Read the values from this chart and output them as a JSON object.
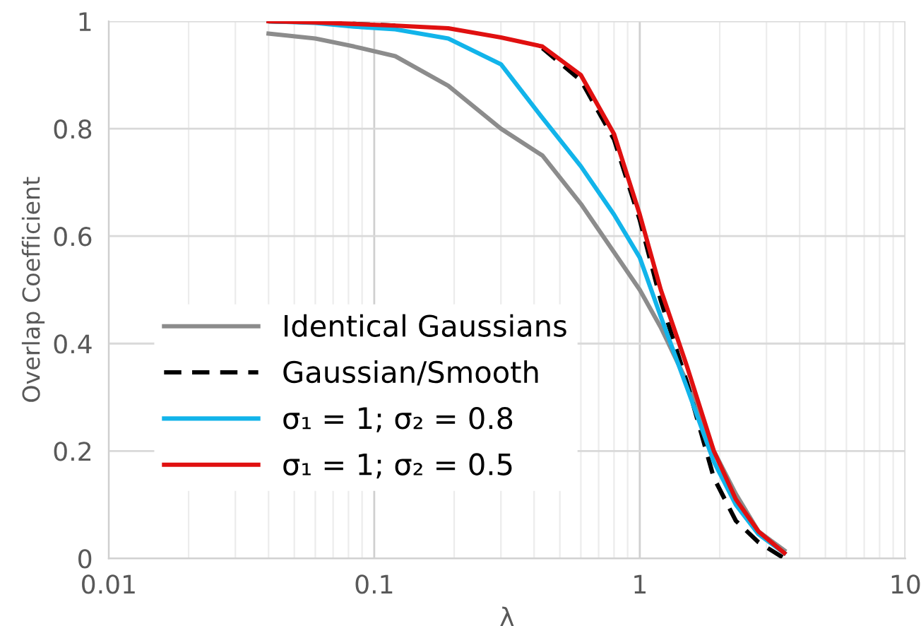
{
  "chart_data": {
    "type": "line",
    "xlabel": "λ",
    "ylabel": "Overlap Coefficient",
    "log": "x",
    "x": [
      0.04,
      0.06,
      0.084,
      0.12,
      0.19,
      0.3,
      0.43,
      0.6,
      0.8,
      1.0,
      1.2,
      1.5,
      1.9,
      2.3,
      2.8,
      3.5
    ],
    "series": [
      {
        "name": "Identical Gaussians",
        "color": "#8c8c8c",
        "line_style": "solid",
        "values": [
          0.977,
          0.968,
          0.953,
          0.935,
          0.88,
          0.8,
          0.75,
          0.66,
          0.57,
          0.5,
          0.43,
          0.33,
          0.2,
          0.12,
          0.05,
          0.015
        ]
      },
      {
        "name": "Gaussian/Smooth",
        "color": "#000000",
        "line_style": "dashed",
        "values": [
          1.0,
          0.998,
          0.995,
          0.992,
          null,
          null,
          0.95,
          0.89,
          0.78,
          0.63,
          0.48,
          0.33,
          0.15,
          0.07,
          0.03,
          0.0
        ]
      },
      {
        "name": "σ₁ = 1; σ₂ = 0.8",
        "color": "#12b4ea",
        "line_style": "solid",
        "values": [
          1.0,
          0.997,
          0.99,
          0.985,
          0.968,
          0.92,
          0.82,
          0.73,
          0.64,
          0.56,
          0.45,
          0.32,
          0.18,
          0.1,
          0.045,
          0.01
        ]
      },
      {
        "name": "σ₁ = 1; σ₂ = 0.5",
        "color": "#e01010",
        "line_style": "solid",
        "values": [
          1.0,
          0.998,
          0.995,
          0.992,
          0.987,
          0.97,
          0.953,
          0.9,
          0.79,
          0.64,
          0.5,
          0.36,
          0.2,
          0.11,
          0.05,
          0.01
        ]
      }
    ],
    "xlim": [
      0.01,
      10
    ],
    "xticks": [
      0.01,
      0.1,
      1,
      10
    ],
    "ylim": [
      0,
      1
    ],
    "yticks": [
      0,
      0.2,
      0.4,
      0.6,
      0.8,
      1
    ],
    "grid": true,
    "legend": "bottom left",
    "marker": "none"
  }
}
